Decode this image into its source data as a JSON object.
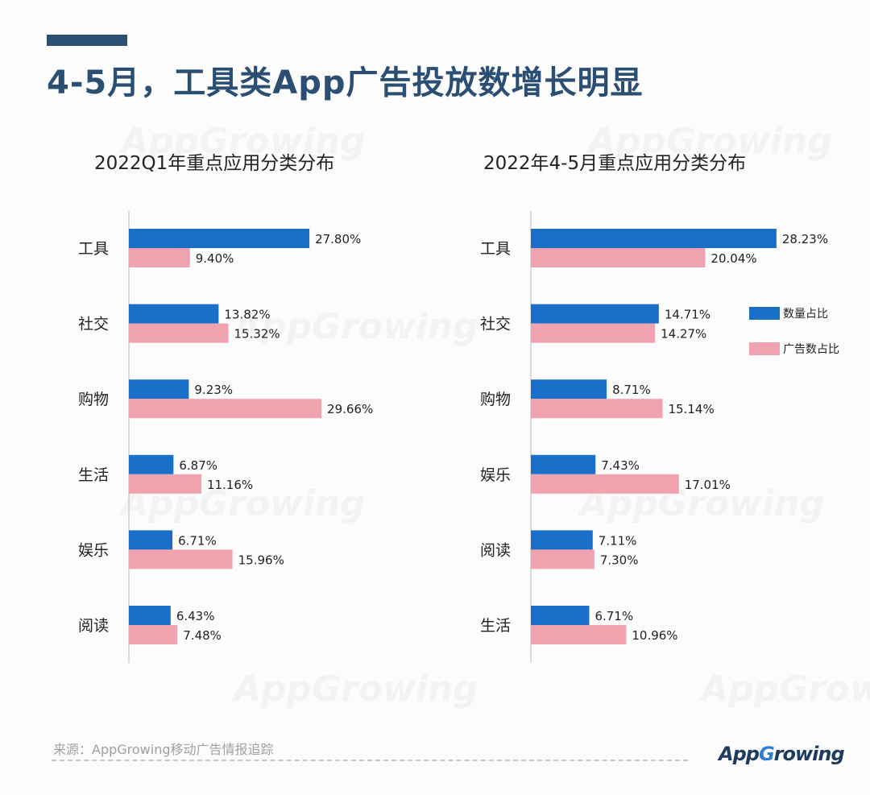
{
  "header": {
    "title": "4-5月，工具类App广告投放数增长明显"
  },
  "footer": {
    "source": "来源：AppGrowing移动广告情报追踪",
    "logo": "AppGrowing"
  },
  "watermark": "AppGrowing",
  "colors": {
    "count_share": "#1a6fc9",
    "ad_share": "#f0a3ae",
    "title": "#2b4e73"
  },
  "legend": [
    "数量占比",
    "广告数占比"
  ],
  "chart_data": [
    {
      "type": "bar",
      "orientation": "horizontal",
      "title": "2022Q1年重点应用分类分布",
      "categories": [
        "工具",
        "社交",
        "购物",
        "生活",
        "娱乐",
        "阅读"
      ],
      "series": [
        {
          "name": "数量占比",
          "values": [
            27.8,
            13.82,
            9.23,
            6.87,
            6.71,
            6.43
          ]
        },
        {
          "name": "广告数占比",
          "values": [
            9.4,
            15.32,
            29.66,
            11.16,
            15.96,
            7.48
          ]
        }
      ],
      "unit": "%",
      "grid": false
    },
    {
      "type": "bar",
      "orientation": "horizontal",
      "title": "2022年4-5月重点应用分类分布",
      "categories": [
        "工具",
        "社交",
        "购物",
        "娱乐",
        "阅读",
        "生活"
      ],
      "series": [
        {
          "name": "数量占比",
          "values": [
            28.23,
            14.71,
            8.71,
            7.43,
            7.11,
            6.71
          ]
        },
        {
          "name": "广告数占比",
          "values": [
            20.04,
            14.27,
            15.14,
            17.01,
            7.3,
            10.96
          ]
        }
      ],
      "unit": "%",
      "grid": false,
      "legend": "right"
    }
  ]
}
